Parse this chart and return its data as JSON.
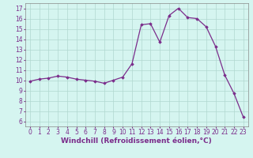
{
  "x": [
    0,
    1,
    2,
    3,
    4,
    5,
    6,
    7,
    8,
    9,
    10,
    11,
    12,
    13,
    14,
    15,
    16,
    17,
    18,
    19,
    20,
    21,
    22,
    23
  ],
  "y": [
    9.9,
    10.1,
    10.2,
    10.4,
    10.3,
    10.1,
    10.0,
    9.9,
    9.7,
    10.0,
    10.3,
    11.6,
    15.4,
    15.5,
    13.7,
    16.3,
    17.0,
    16.1,
    16.0,
    15.2,
    13.3,
    10.5,
    8.7,
    6.4
  ],
  "line_color": "#7b2d8b",
  "marker": "D",
  "marker_size": 1.8,
  "line_width": 0.9,
  "background_color": "#d5f5f0",
  "grid_color": "#b0d8d0",
  "xlabel": "Windchill (Refroidissement éolien,°C)",
  "xlabel_fontsize": 6.5,
  "ylim": [
    5.5,
    17.5
  ],
  "xlim": [
    -0.5,
    23.5
  ],
  "yticks": [
    6,
    7,
    8,
    9,
    10,
    11,
    12,
    13,
    14,
    15,
    16,
    17
  ],
  "xticks": [
    0,
    1,
    2,
    3,
    4,
    5,
    6,
    7,
    8,
    9,
    10,
    11,
    12,
    13,
    14,
    15,
    16,
    17,
    18,
    19,
    20,
    21,
    22,
    23
  ],
  "tick_fontsize": 5.5,
  "label_color": "#7b2d8b"
}
